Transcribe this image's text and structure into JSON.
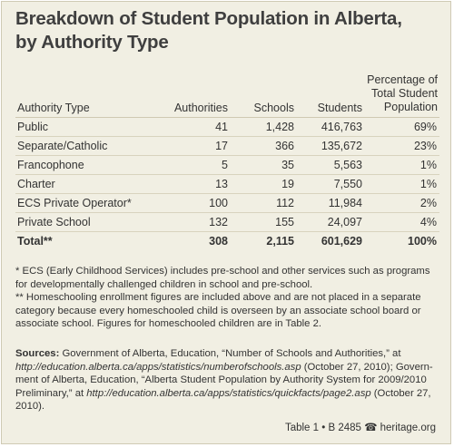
{
  "title": {
    "line1": "Breakdown of Student Population in Alberta,",
    "line2": "by Authority Type"
  },
  "table": {
    "headers": {
      "type": "Authority Type",
      "authorities": "Authorities",
      "schools": "Schools",
      "students": "Students",
      "pct_line1": "Percentage of",
      "pct_line2": "Total Student",
      "pct_line3": "Population"
    },
    "rows": [
      {
        "type": "Public",
        "authorities": "41",
        "schools": "1,428",
        "students": "416,763",
        "pct": "69%"
      },
      {
        "type": "Separate/Catholic",
        "authorities": "17",
        "schools": "366",
        "students": "135,672",
        "pct": "23%"
      },
      {
        "type": "Francophone",
        "authorities": "5",
        "schools": "35",
        "students": "5,563",
        "pct": "1%"
      },
      {
        "type": "Charter",
        "authorities": "13",
        "schools": "19",
        "students": "7,550",
        "pct": "1%"
      },
      {
        "type": "ECS Private Operator*",
        "authorities": "100",
        "schools": "112",
        "students": "11,984",
        "pct": "2%"
      },
      {
        "type": "Private School",
        "authorities": "132",
        "schools": "155",
        "students": "24,097",
        "pct": "4%"
      }
    ],
    "total": {
      "type": "Total**",
      "authorities": "308",
      "schools": "2,115",
      "students": "601,629",
      "pct": "100%"
    }
  },
  "notes": {
    "n1_l1": "* ECS (Early Childhood Services) includes pre-school and other services such as programs",
    "n1_l2": "for developmentally challenged children in school and pre-school.",
    "n2_l1": "** Homeschooling enrollment figures are included above and are not placed in a separate",
    "n2_l2": "category because every homeschooled child is overseen by an associate school board or",
    "n2_l3": "associate school. Figures for homeschooled children are in Table 2."
  },
  "sources": {
    "label": "Sources:",
    "l1": " Government of Alberta, Education, “Number of Schools and Authorities,” at",
    "l2_url": "http://education.alberta.ca/apps/statistics/numberofschools.asp",
    "l2_rest": " (October 27, 2010); Govern-",
    "l3": "ment of Alberta, Education, “Alberta Student Population by Authority System for 2009/2010",
    "l4_pre": "Preliminary,” at ",
    "l4_url": "http://education.alberta.ca/apps/statistics/quickfacts/page2.asp",
    "l4_rest": " (October 27,",
    "l5": "2010)."
  },
  "credit": "Table 1 • B 2485 ☎ heritage.org",
  "colors": {
    "background": "#f1efe3",
    "border": "#cfcab4",
    "text": "#333333"
  }
}
